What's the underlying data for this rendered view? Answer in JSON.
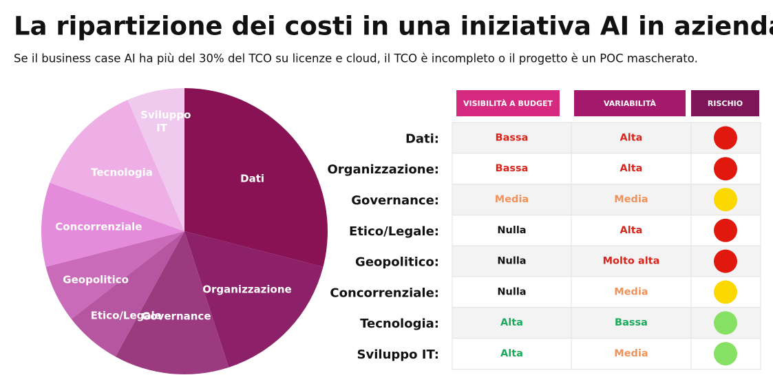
{
  "title": "La ripartizione dei costi in una iniziativa AI in azienda",
  "subtitle": "Se il business case AI ha più del 30% del TCO su licenze e cloud, il TCO è incompleto o il progetto è un POC mascherato.",
  "chart_data": {
    "type": "pie",
    "categories": [
      "Dati",
      "Organizzazione",
      "Governance",
      "Etico/Legale",
      "Geopolitico",
      "Concorrenziale",
      "Tecnologia",
      "Sviluppo IT"
    ],
    "values": [
      29,
      16,
      13,
      6.5,
      6.5,
      9.5,
      13,
      6.5
    ],
    "colors": [
      "#891255",
      "#8d2169",
      "#9c3a80",
      "#b656a1",
      "#c96bb8",
      "#e58bdb",
      "#eeafe6",
      "#efcaee"
    ]
  },
  "table": {
    "headers": [
      {
        "text": "VISIBILITÀ A BUDGET",
        "color": "#d52a80"
      },
      {
        "text": "VARIABILITÀ",
        "color": "#a5196c"
      },
      {
        "text": "RISCHIO",
        "color": "#7e1558"
      }
    ],
    "rows": [
      {
        "label": "Dati:",
        "cells": [
          {
            "text": "Bassa",
            "color": "#d8261c"
          },
          {
            "text": "Alta",
            "color": "#d8261c"
          }
        ],
        "risk": "#e0180d"
      },
      {
        "label": "Organizzazione:",
        "cells": [
          {
            "text": "Bassa",
            "color": "#d8261c"
          },
          {
            "text": "Alta",
            "color": "#d8261c"
          }
        ],
        "risk": "#e0180d"
      },
      {
        "label": "Governance:",
        "cells": [
          {
            "text": "Media",
            "color": "#f0935a"
          },
          {
            "text": "Media",
            "color": "#f0935a"
          }
        ],
        "risk": "#fad800"
      },
      {
        "label": "Etico/Legale:",
        "cells": [
          {
            "text": "Nulla",
            "color": "#111111"
          },
          {
            "text": "Alta",
            "color": "#d8261c"
          }
        ],
        "risk": "#e0180d"
      },
      {
        "label": "Geopolitico:",
        "cells": [
          {
            "text": "Nulla",
            "color": "#111111"
          },
          {
            "text": "Molto alta",
            "color": "#d8261c"
          }
        ],
        "risk": "#e0180d"
      },
      {
        "label": "Concorrenziale:",
        "cells": [
          {
            "text": "Nulla",
            "color": "#111111"
          },
          {
            "text": "Media",
            "color": "#f0935a"
          }
        ],
        "risk": "#fad800"
      },
      {
        "label": "Tecnologia:",
        "cells": [
          {
            "text": "Alta",
            "color": "#19aa5c"
          },
          {
            "text": "Bassa",
            "color": "#19aa5c"
          }
        ],
        "risk": "#86e063"
      },
      {
        "label": "Sviluppo IT:",
        "cells": [
          {
            "text": "Alta",
            "color": "#19aa5c"
          },
          {
            "text": "Media",
            "color": "#f0935a"
          }
        ],
        "risk": "#86e063"
      }
    ]
  }
}
